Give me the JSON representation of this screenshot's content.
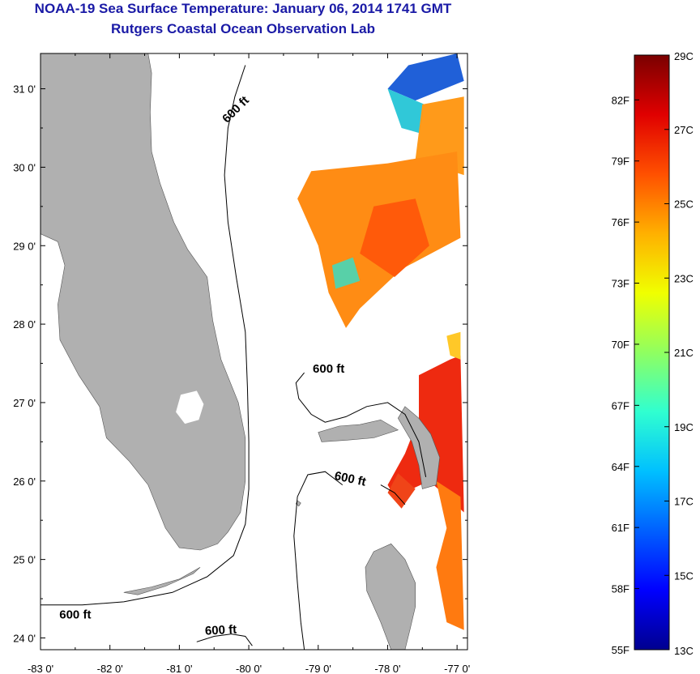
{
  "header": {
    "title": "NOAA-19 Sea Surface Temperature:  January 06, 2014 1741 GMT",
    "subtitle": "Rutgers Coastal Ocean Observation Lab"
  },
  "map": {
    "lon_range": [
      -83.0,
      -76.85
    ],
    "lat_range": [
      23.85,
      31.45
    ],
    "lon_ticks": [
      -83,
      -82,
      -81,
      -80,
      -79,
      -78,
      -77
    ],
    "lon_labels": [
      "-83 0'",
      "-82 0'",
      "-81 0'",
      "-80 0'",
      "-79 0'",
      "-78 0'",
      "-77 0'"
    ],
    "lat_ticks": [
      31,
      30,
      29,
      28,
      27,
      26,
      25,
      24
    ],
    "lat_labels": [
      "31 0'",
      "30 0'",
      "29 0'",
      "28 0'",
      "27 0'",
      "26 0'",
      "25 0'",
      "24 0'"
    ],
    "colors": {
      "land": "#b0b0b0",
      "water": "#ffffff",
      "contour": "#000000"
    },
    "contour_labels": [
      {
        "text": "600 ft",
        "lon": -80.15,
        "lat": 30.7,
        "rotate": -45
      },
      {
        "text": "600 ft",
        "lon": -78.85,
        "lat": 27.38,
        "rotate": 0
      },
      {
        "text": "600 ft",
        "lon": -78.55,
        "lat": 25.98,
        "rotate": 12
      },
      {
        "text": "600 ft",
        "lon": -82.5,
        "lat": 24.25,
        "rotate": 0
      },
      {
        "text": "600 ft",
        "lon": -80.4,
        "lat": 24.05,
        "rotate": -3
      }
    ],
    "contours": [
      [
        [
          -80.05,
          31.3
        ],
        [
          -80.2,
          30.9
        ],
        [
          -80.3,
          30.5
        ],
        [
          -80.35,
          29.9
        ],
        [
          -80.3,
          29.3
        ],
        [
          -80.18,
          28.6
        ],
        [
          -80.05,
          27.9
        ],
        [
          -80.02,
          27.2
        ],
        [
          -80.0,
          26.5
        ],
        [
          -80.0,
          25.9
        ],
        [
          -80.05,
          25.45
        ],
        [
          -80.22,
          25.05
        ],
        [
          -80.6,
          24.78
        ],
        [
          -81.1,
          24.58
        ],
        [
          -81.8,
          24.46
        ],
        [
          -82.4,
          24.42
        ],
        [
          -83.0,
          24.42
        ]
      ],
      [
        [
          -79.2,
          27.38
        ],
        [
          -79.32,
          27.25
        ],
        [
          -79.28,
          27.05
        ],
        [
          -79.1,
          26.85
        ],
        [
          -78.9,
          26.75
        ],
        [
          -78.6,
          26.82
        ],
        [
          -78.3,
          26.95
        ],
        [
          -78.0,
          27.0
        ],
        [
          -77.75,
          26.85
        ],
        [
          -77.55,
          26.5
        ],
        [
          -77.45,
          26.05
        ]
      ],
      [
        [
          -78.65,
          25.95
        ],
        [
          -78.9,
          26.12
        ],
        [
          -79.15,
          26.08
        ],
        [
          -79.3,
          25.8
        ],
        [
          -79.35,
          25.3
        ],
        [
          -79.3,
          24.7
        ],
        [
          -79.25,
          24.2
        ],
        [
          -79.2,
          23.85
        ]
      ],
      [
        [
          -78.1,
          25.95
        ],
        [
          -77.9,
          25.85
        ],
        [
          -77.75,
          25.7
        ]
      ],
      [
        [
          -80.75,
          23.95
        ],
        [
          -80.5,
          24.02
        ],
        [
          -80.25,
          24.05
        ],
        [
          -80.05,
          24.02
        ],
        [
          -79.95,
          23.9
        ]
      ]
    ],
    "land": [
      {
        "name": "florida",
        "points": [
          [
            -83.0,
            31.45
          ],
          [
            -81.45,
            31.45
          ],
          [
            -81.4,
            31.2
          ],
          [
            -81.42,
            30.7
          ],
          [
            -81.4,
            30.2
          ],
          [
            -81.28,
            29.8
          ],
          [
            -81.08,
            29.3
          ],
          [
            -80.88,
            28.95
          ],
          [
            -80.6,
            28.6
          ],
          [
            -80.52,
            28.05
          ],
          [
            -80.4,
            27.55
          ],
          [
            -80.15,
            27.0
          ],
          [
            -80.05,
            26.55
          ],
          [
            -80.05,
            26.0
          ],
          [
            -80.12,
            25.6
          ],
          [
            -80.3,
            25.35
          ],
          [
            -80.45,
            25.2
          ],
          [
            -80.7,
            25.12
          ],
          [
            -81.0,
            25.15
          ],
          [
            -81.2,
            25.4
          ],
          [
            -81.45,
            25.95
          ],
          [
            -81.72,
            26.25
          ],
          [
            -82.05,
            26.55
          ],
          [
            -82.15,
            26.95
          ],
          [
            -82.45,
            27.35
          ],
          [
            -82.72,
            27.8
          ],
          [
            -82.75,
            28.25
          ],
          [
            -82.65,
            28.75
          ],
          [
            -82.75,
            29.05
          ],
          [
            -83.0,
            29.15
          ]
        ]
      },
      {
        "name": "keys",
        "points": [
          [
            -81.8,
            24.58
          ],
          [
            -81.4,
            24.65
          ],
          [
            -81.0,
            24.75
          ],
          [
            -80.7,
            24.9
          ],
          [
            -80.8,
            24.82
          ],
          [
            -81.2,
            24.66
          ],
          [
            -81.6,
            24.55
          ]
        ]
      },
      {
        "name": "grand-bahama",
        "points": [
          [
            -79.0,
            26.62
          ],
          [
            -78.7,
            26.7
          ],
          [
            -78.4,
            26.72
          ],
          [
            -78.1,
            26.78
          ],
          [
            -77.85,
            26.65
          ],
          [
            -78.2,
            26.55
          ],
          [
            -78.6,
            26.52
          ],
          [
            -78.95,
            26.5
          ]
        ]
      },
      {
        "name": "abaco",
        "points": [
          [
            -77.75,
            26.95
          ],
          [
            -77.55,
            26.8
          ],
          [
            -77.38,
            26.6
          ],
          [
            -77.25,
            26.3
          ],
          [
            -77.3,
            25.95
          ],
          [
            -77.5,
            25.9
          ],
          [
            -77.55,
            26.2
          ],
          [
            -77.65,
            26.5
          ],
          [
            -77.85,
            26.8
          ]
        ]
      },
      {
        "name": "andros",
        "points": [
          [
            -78.2,
            25.1
          ],
          [
            -77.95,
            25.2
          ],
          [
            -77.75,
            25.0
          ],
          [
            -77.6,
            24.7
          ],
          [
            -77.6,
            24.4
          ],
          [
            -77.68,
            24.1
          ],
          [
            -77.75,
            23.85
          ],
          [
            -77.95,
            23.85
          ],
          [
            -78.1,
            24.2
          ],
          [
            -78.3,
            24.6
          ],
          [
            -78.32,
            24.9
          ]
        ]
      },
      {
        "name": "bimini",
        "points": [
          [
            -79.3,
            25.75
          ],
          [
            -79.25,
            25.72
          ],
          [
            -79.28,
            25.68
          ],
          [
            -79.32,
            25.71
          ]
        ]
      }
    ],
    "lakes": [
      {
        "name": "lake-okeechobee",
        "points": [
          [
            -80.98,
            27.1
          ],
          [
            -80.75,
            27.15
          ],
          [
            -80.65,
            26.98
          ],
          [
            -80.72,
            26.78
          ],
          [
            -80.92,
            26.73
          ],
          [
            -81.05,
            26.88
          ]
        ]
      }
    ],
    "sst_patches": [
      {
        "name": "sst-patch-north-blue",
        "color": "#2060d8",
        "points": [
          [
            -77.7,
            31.3
          ],
          [
            -77.0,
            31.45
          ],
          [
            -76.9,
            31.1
          ],
          [
            -77.6,
            30.85
          ],
          [
            -78.0,
            31.0
          ]
        ]
      },
      {
        "name": "sst-patch-north-cyan",
        "color": "#30c8d8",
        "points": [
          [
            -78.0,
            31.0
          ],
          [
            -77.2,
            30.7
          ],
          [
            -77.0,
            30.3
          ],
          [
            -77.8,
            30.5
          ]
        ]
      },
      {
        "name": "sst-patch-northeast-orange",
        "color": "#ff9a1a",
        "points": [
          [
            -77.5,
            30.8
          ],
          [
            -76.9,
            30.9
          ],
          [
            -76.9,
            29.9
          ],
          [
            -77.6,
            30.1
          ]
        ]
      },
      {
        "name": "sst-patch-main-orange",
        "color": "#ff8c14",
        "points": [
          [
            -79.1,
            29.95
          ],
          [
            -78.0,
            30.05
          ],
          [
            -77.0,
            30.2
          ],
          [
            -76.95,
            29.1
          ],
          [
            -77.8,
            28.7
          ],
          [
            -78.4,
            28.2
          ],
          [
            -78.6,
            27.95
          ],
          [
            -78.85,
            28.4
          ],
          [
            -79.0,
            29.0
          ],
          [
            -79.3,
            29.6
          ]
        ]
      },
      {
        "name": "sst-patch-gulfstream-red",
        "color": "#ff5a0a",
        "points": [
          [
            -78.2,
            29.5
          ],
          [
            -77.6,
            29.6
          ],
          [
            -77.4,
            29.0
          ],
          [
            -77.9,
            28.6
          ],
          [
            -78.4,
            28.9
          ]
        ]
      },
      {
        "name": "sst-patch-mid-cyan",
        "color": "#58d0a8",
        "points": [
          [
            -78.8,
            28.75
          ],
          [
            -78.5,
            28.85
          ],
          [
            -78.4,
            28.55
          ],
          [
            -78.75,
            28.45
          ]
        ]
      },
      {
        "name": "sst-patch-bahamas-red",
        "color": "#ee2a10",
        "points": [
          [
            -77.55,
            27.35
          ],
          [
            -77.1,
            27.55
          ],
          [
            -76.95,
            27.6
          ],
          [
            -76.9,
            25.6
          ],
          [
            -77.4,
            26.0
          ],
          [
            -77.9,
            25.8
          ],
          [
            -78.0,
            25.95
          ],
          [
            -77.75,
            26.35
          ],
          [
            -77.55,
            26.8
          ]
        ]
      },
      {
        "name": "sst-patch-south-orange",
        "color": "#ff7a10",
        "points": [
          [
            -77.3,
            26.0
          ],
          [
            -76.95,
            25.8
          ],
          [
            -76.9,
            24.1
          ],
          [
            -77.15,
            24.2
          ],
          [
            -77.3,
            24.9
          ],
          [
            -77.15,
            25.4
          ]
        ]
      },
      {
        "name": "sst-patch-tongue",
        "color": "#f04418",
        "points": [
          [
            -77.85,
            26.1
          ],
          [
            -77.6,
            25.9
          ],
          [
            -77.8,
            25.65
          ],
          [
            -78.0,
            25.85
          ]
        ]
      },
      {
        "name": "sst-patch-se-yellow",
        "color": "#ffc828",
        "points": [
          [
            -77.15,
            27.85
          ],
          [
            -76.95,
            27.9
          ],
          [
            -76.95,
            27.55
          ],
          [
            -77.1,
            27.6
          ]
        ]
      }
    ]
  },
  "colorbar": {
    "colors": [
      "#00008f",
      "#0000ff",
      "#0060ff",
      "#00c0ff",
      "#30ffd0",
      "#90ff60",
      "#f0ff00",
      "#ffb000",
      "#ff5000",
      "#e00000",
      "#7a0000"
    ],
    "left_labels": [
      "82F",
      "79F",
      "76F",
      "73F",
      "70F",
      "67F",
      "64F",
      "61F",
      "58F",
      "55F"
    ],
    "left_positions": [
      82,
      79,
      76,
      73,
      70,
      67,
      64,
      61,
      58,
      55
    ],
    "right_labels": [
      "29C",
      "27C",
      "25C",
      "23C",
      "21C",
      "19C",
      "17C",
      "15C",
      "13C"
    ],
    "right_positions": [
      29,
      27,
      25,
      23,
      21,
      19,
      17,
      15,
      13
    ],
    "range_f": [
      55,
      84.2
    ],
    "range_c": [
      13,
      29
    ]
  }
}
